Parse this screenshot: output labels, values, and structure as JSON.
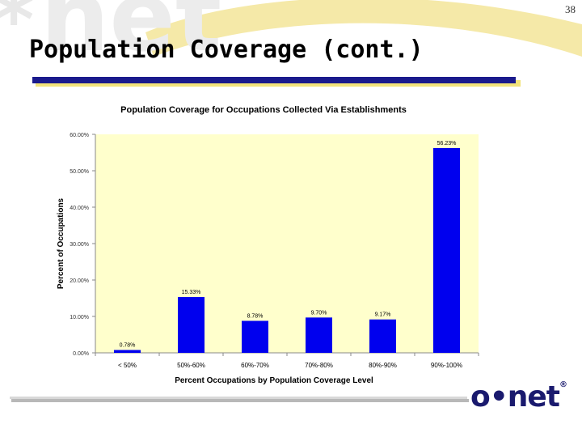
{
  "slide": {
    "number": "38",
    "title": "Population Coverage (cont.)",
    "logo_text": "o•net",
    "logo_mark": "®"
  },
  "colors": {
    "bar": "#0000ee",
    "plot_bg": "#ffffcc",
    "title_bar": "#1a1a8c",
    "title_bar_shadow": "#f2e37a",
    "watermark": "#f5e9a8"
  },
  "chart_data": {
    "type": "bar",
    "title": "Population Coverage for Occupations Collected Via Establishments",
    "xlabel": "Percent Occupations by Population Coverage Level",
    "ylabel": "Percent of Occupations",
    "categories": [
      "< 50%",
      "50%-60%",
      "60%-70%",
      "70%-80%",
      "80%-90%",
      "90%-100%"
    ],
    "values": [
      0.78,
      15.33,
      8.78,
      9.7,
      9.17,
      56.23
    ],
    "data_labels": [
      "0.78%",
      "15.33%",
      "8.78%",
      "9.70%",
      "9.17%",
      "56.23%"
    ],
    "yticks": [
      "0.00%",
      "10.00%",
      "20.00%",
      "30.00%",
      "40.00%",
      "50.00%",
      "60.00%"
    ],
    "ylim": [
      0,
      60
    ],
    "grid": false,
    "legend": "none"
  }
}
